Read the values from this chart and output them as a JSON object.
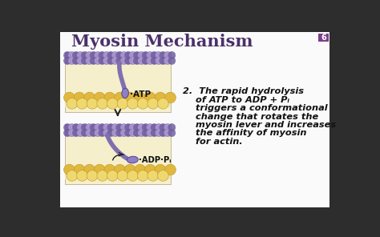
{
  "title": "Myosin Mechanism",
  "slide_num": "6",
  "bg_color": "#f0eeee",
  "title_color": "#4a306a",
  "title_fontsize": 15,
  "slide_num_bg": "#7b3f8c",
  "slide_num_color": "#ffffff",
  "text_color": "#111111",
  "text_fontsize": 8.2,
  "filament_purple_light": "#b09ad0",
  "filament_purple_mid": "#9880be",
  "filament_purple_dark": "#7060a0",
  "actin_gold": "#e0b840",
  "actin_dark": "#c09820",
  "actin_light": "#f0d870",
  "myosin_head_color": "#9080c0",
  "myosin_neck_color": "#8070b0",
  "panel_bg": "#f5efcc",
  "panel_border": "#b0a080",
  "arrow_color": "#222222",
  "atp_label": "·ATP",
  "adp_label": "·ADP·Pᵢ",
  "label_color": "#111111",
  "outer_bg": "#2d2d2d",
  "white_bg": "#fafafa",
  "text_lines": [
    "2.  The rapid hydrolysis",
    "    of ATP to ADP + Pᵢ",
    "    triggers a conformational",
    "    change that rotates the",
    "    myosin lever and increases",
    "    the affinity of myosin",
    "    for actin."
  ]
}
